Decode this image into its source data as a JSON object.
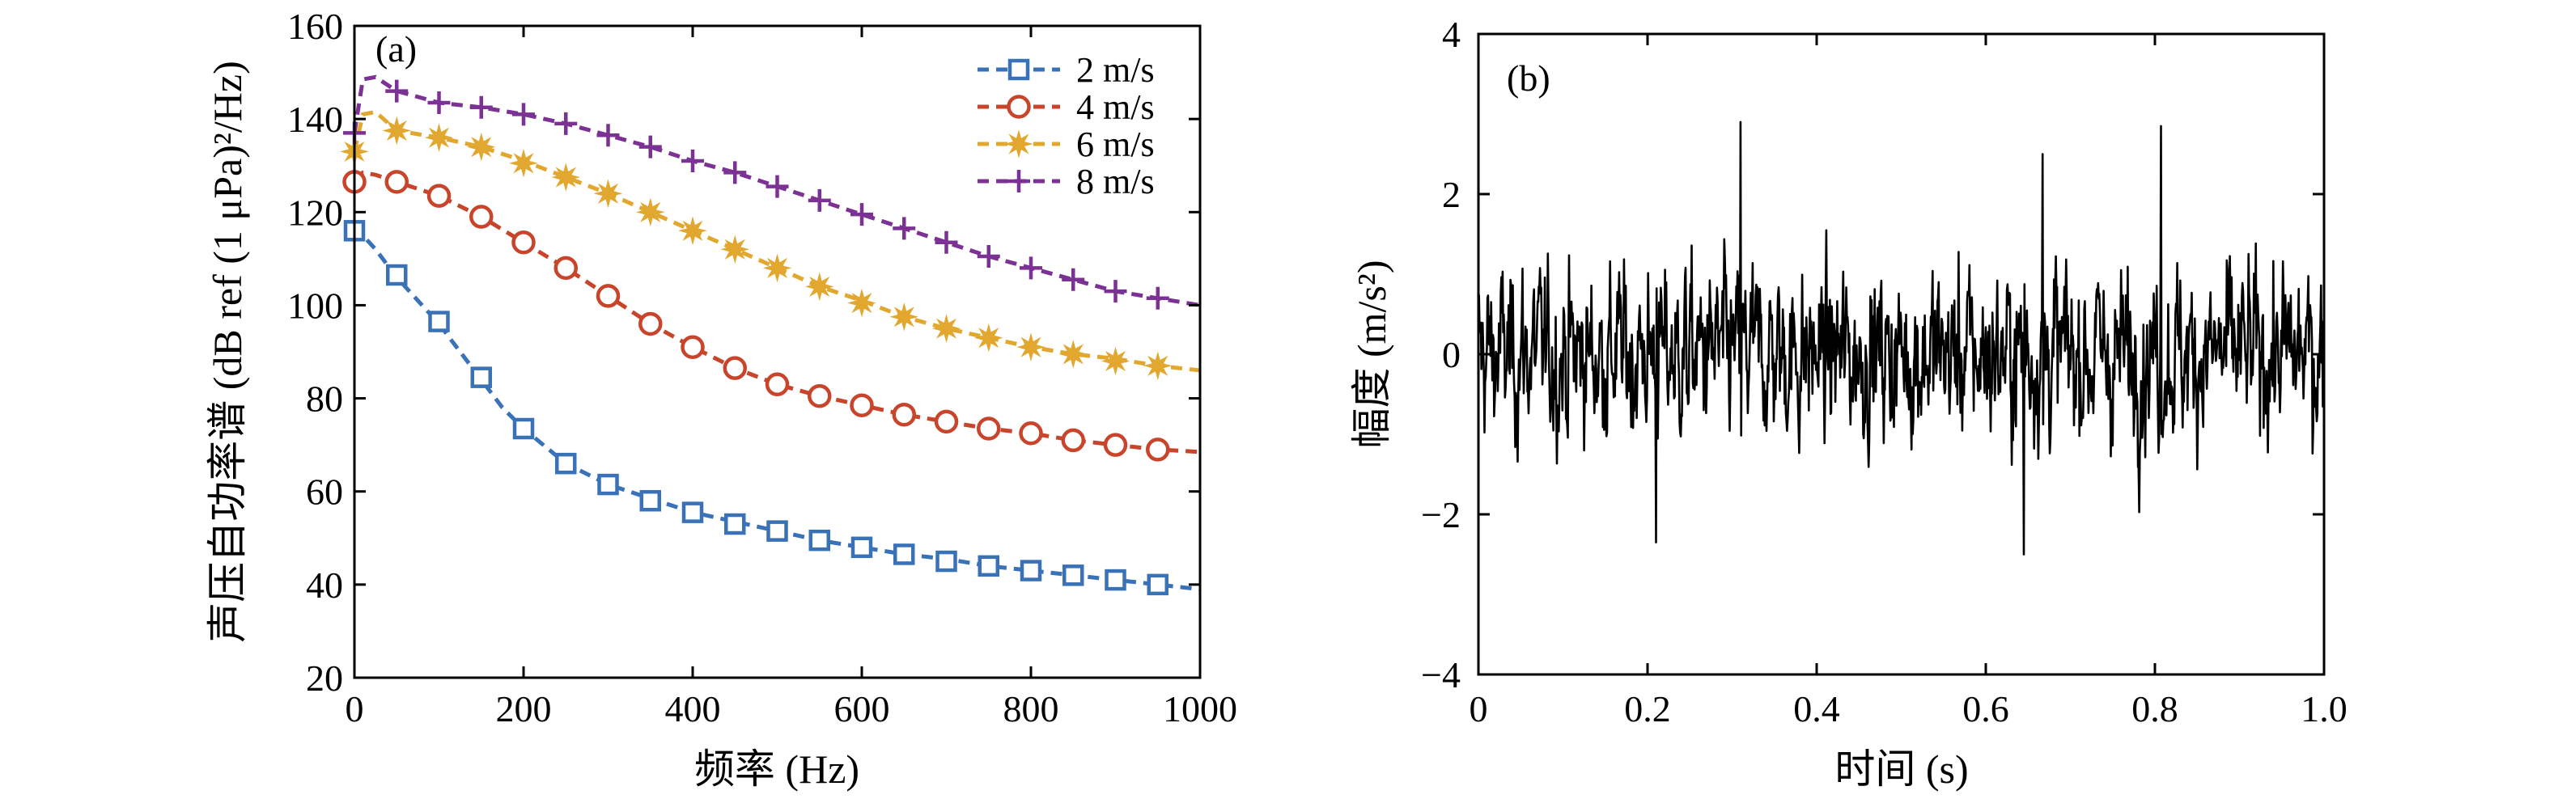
{
  "chart_data": [
    {
      "type": "line",
      "panel_label": "(a)",
      "xlabel": "频率 (Hz)",
      "ylabel": "声压自功率谱 (dB ref (1 μPa)²/Hz)",
      "xlim": [
        0,
        1000
      ],
      "ylim": [
        20,
        160
      ],
      "xticks": [
        0,
        200,
        400,
        600,
        800,
        1000
      ],
      "yticks": [
        20,
        40,
        60,
        80,
        100,
        120,
        140,
        160
      ],
      "legend_position": "top-right",
      "series": [
        {
          "name": "2 m/s",
          "color": "#3a72b8",
          "marker": "square",
          "curve_x": [
            0,
            10,
            25,
            50,
            75,
            100,
            125,
            150,
            175,
            200,
            250,
            300,
            350,
            400,
            450,
            500,
            550,
            600,
            650,
            700,
            750,
            800,
            850,
            900,
            950,
            1000
          ],
          "curve_y": [
            117,
            115,
            112,
            106,
            101,
            96,
            90,
            84,
            78,
            73.5,
            66,
            61.5,
            58.5,
            55.5,
            53.5,
            51.5,
            49.5,
            48,
            46.5,
            45.5,
            44,
            43,
            42,
            41,
            40,
            39
          ],
          "marker_x": [
            0,
            50,
            100,
            150,
            200,
            250,
            300,
            350,
            400,
            450,
            500,
            550,
            600,
            650,
            700,
            750,
            800,
            850,
            900,
            950
          ],
          "marker_y": [
            116,
            106.5,
            96.5,
            84.5,
            73.5,
            66,
            61.5,
            58,
            55.5,
            53,
            51.5,
            49.5,
            48,
            46.5,
            45,
            44,
            43,
            42,
            41,
            40
          ]
        },
        {
          "name": "4 m/s",
          "color": "#c8442a",
          "marker": "circle",
          "curve_x": [
            0,
            10,
            25,
            50,
            100,
            150,
            200,
            250,
            300,
            350,
            400,
            450,
            500,
            550,
            600,
            650,
            700,
            750,
            800,
            850,
            900,
            950,
            1000
          ],
          "curve_y": [
            127,
            128.5,
            128,
            126.5,
            123.5,
            119,
            113.5,
            108,
            102,
            96,
            91,
            86.5,
            83,
            80.5,
            78.5,
            76.5,
            75,
            73.5,
            72.5,
            71,
            70,
            69,
            68.5
          ],
          "marker_x": [
            0,
            50,
            100,
            150,
            200,
            250,
            300,
            350,
            400,
            450,
            500,
            550,
            600,
            650,
            700,
            750,
            800,
            850,
            900,
            950
          ],
          "marker_y": [
            126.5,
            126.5,
            123.5,
            119,
            113.5,
            108,
            102,
            96,
            91,
            86.5,
            83,
            80.5,
            78.5,
            76.5,
            75,
            73.5,
            72.5,
            71,
            70,
            69
          ]
        },
        {
          "name": "6 m/s",
          "color": "#e2a72e",
          "marker": "star",
          "curve_x": [
            0,
            10,
            25,
            50,
            100,
            150,
            200,
            250,
            300,
            350,
            400,
            450,
            500,
            550,
            600,
            650,
            700,
            750,
            800,
            850,
            900,
            950,
            1000
          ],
          "curve_y": [
            133,
            141,
            141.5,
            137.5,
            136,
            134,
            131,
            127.5,
            124,
            120,
            116,
            112,
            108,
            104,
            101,
            97.5,
            95,
            93,
            91,
            89.5,
            88.5,
            87,
            86
          ],
          "marker_x": [
            0,
            50,
            100,
            150,
            200,
            250,
            300,
            350,
            400,
            450,
            500,
            550,
            600,
            650,
            700,
            750,
            800,
            850,
            900,
            950
          ],
          "marker_y": [
            133,
            137.5,
            136,
            134,
            130.5,
            127.5,
            124,
            120,
            116,
            112,
            108,
            104,
            100.5,
            97.5,
            95,
            93,
            91,
            89.5,
            88,
            87
          ]
        },
        {
          "name": "8 m/s",
          "color": "#7b3294",
          "marker": "plus",
          "curve_x": [
            0,
            10,
            25,
            50,
            100,
            150,
            200,
            250,
            300,
            350,
            400,
            450,
            500,
            550,
            600,
            650,
            700,
            750,
            800,
            850,
            900,
            950,
            1000
          ],
          "curve_y": [
            137,
            148.5,
            149,
            146,
            143.5,
            142.5,
            141,
            139,
            136.5,
            134,
            131,
            128.5,
            125.5,
            122.5,
            119.5,
            116.5,
            113.5,
            110.5,
            108,
            105.5,
            103,
            101.5,
            100
          ],
          "marker_x": [
            0,
            50,
            100,
            150,
            200,
            250,
            300,
            350,
            400,
            450,
            500,
            550,
            600,
            650,
            700,
            750,
            800,
            850,
            900,
            950
          ],
          "marker_y": [
            137,
            146,
            143.5,
            142.5,
            141,
            139,
            136.5,
            134,
            131,
            128.5,
            125.5,
            122.5,
            119.5,
            116.5,
            113.5,
            110.5,
            108,
            105.5,
            103,
            101.5
          ]
        }
      ]
    },
    {
      "type": "line",
      "panel_label": "(b)",
      "xlabel": "时间 (s)",
      "ylabel": "幅度 (m/s²)",
      "xlim": [
        0,
        1.0
      ],
      "ylim": [
        -4,
        4
      ],
      "xticks": [
        "0",
        "0.2",
        "0.4",
        "0.6",
        "0.8",
        "1.0"
      ],
      "yticks": [
        "−4",
        "−2",
        "0",
        "2",
        "4"
      ],
      "color": "#000000",
      "series": [
        {
          "description_of_signal": "",
          "approx_amplitude_range": [
            -2.5,
            2.9
          ],
          "peaks": [
            {
              "x": 0.31,
              "y": 2.9
            },
            {
              "x": 0.807,
              "y": 2.85
            },
            {
              "x": 0.667,
              "y": 2.5
            },
            {
              "x": 0.645,
              "y": -2.5
            },
            {
              "x": 0.21,
              "y": -2.35
            }
          ]
        }
      ]
    }
  ]
}
